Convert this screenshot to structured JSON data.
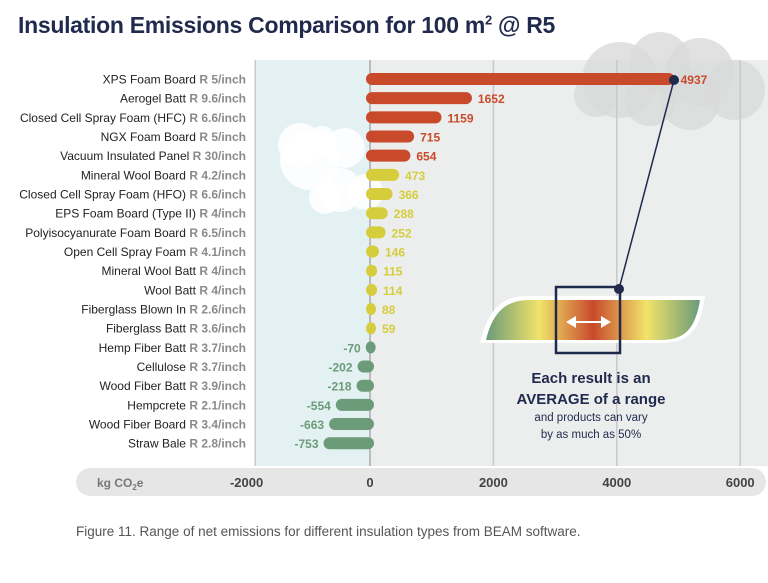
{
  "title": "Insulation Emissions Comparison for 100 m² @ R5",
  "caption": "Figure 11. Range of net emissions for different insulation types from BEAM software.",
  "callout": {
    "line1": "Each result is an",
    "line2": "AVERAGE of a range",
    "line3": "and products can vary",
    "line4": "by as much as 50%"
  },
  "chart_data": {
    "type": "bar",
    "orientation": "horizontal",
    "xlabel": "kg CO2e",
    "xlim": [
      -2000,
      6000
    ],
    "xticks": [
      -2000,
      0,
      2000,
      4000,
      6000
    ],
    "grid": true,
    "colors": {
      "high": "#c84a2b",
      "medium": "#d5cd3c",
      "negative": "#6b9b79"
    },
    "categories": [
      {
        "name": "XPS Foam Board",
        "r": "R 5/inch"
      },
      {
        "name": "Aerogel Batt",
        "r": "R 9.6/inch"
      },
      {
        "name": "Closed Cell Spray Foam (HFC)",
        "r": "R 6.6/inch"
      },
      {
        "name": "NGX Foam Board",
        "r": "R 5/inch"
      },
      {
        "name": "Vacuum Insulated Panel",
        "r": "R 30/inch"
      },
      {
        "name": "Mineral Wool Board",
        "r": "R 4.2/inch"
      },
      {
        "name": "Closed Cell Spray Foam (HFO)",
        "r": "R 6.6/inch"
      },
      {
        "name": "EPS Foam Board (Type II)",
        "r": "R 4/inch"
      },
      {
        "name": "Polyisocyanurate Foam Board",
        "r": "R 6.5/inch"
      },
      {
        "name": "Open Cell Spray Foam",
        "r": "R 4.1/inch"
      },
      {
        "name": "Mineral Wool Batt",
        "r": "R 4/inch"
      },
      {
        "name": "Wool Batt",
        "r": "R 4/inch"
      },
      {
        "name": "Fiberglass Blown In",
        "r": "R 2.6/inch"
      },
      {
        "name": "Fiberglass Batt",
        "r": "R 3.6/inch"
      },
      {
        "name": "Hemp Fiber Batt",
        "r": "R 3.7/inch"
      },
      {
        "name": "Cellulose",
        "r": "R 3.7/inch"
      },
      {
        "name": "Wood Fiber Batt",
        "r": "R 3.9/inch"
      },
      {
        "name": "Hempcrete",
        "r": "R 2.1/inch"
      },
      {
        "name": "Wood Fiber Board",
        "r": "R 3.4/inch"
      },
      {
        "name": "Straw Bale",
        "r": "R 2.8/inch"
      }
    ],
    "values": [
      4937,
      1652,
      1159,
      715,
      654,
      473,
      366,
      288,
      252,
      146,
      115,
      114,
      88,
      59,
      -70,
      -202,
      -218,
      -554,
      -663,
      -753
    ]
  }
}
